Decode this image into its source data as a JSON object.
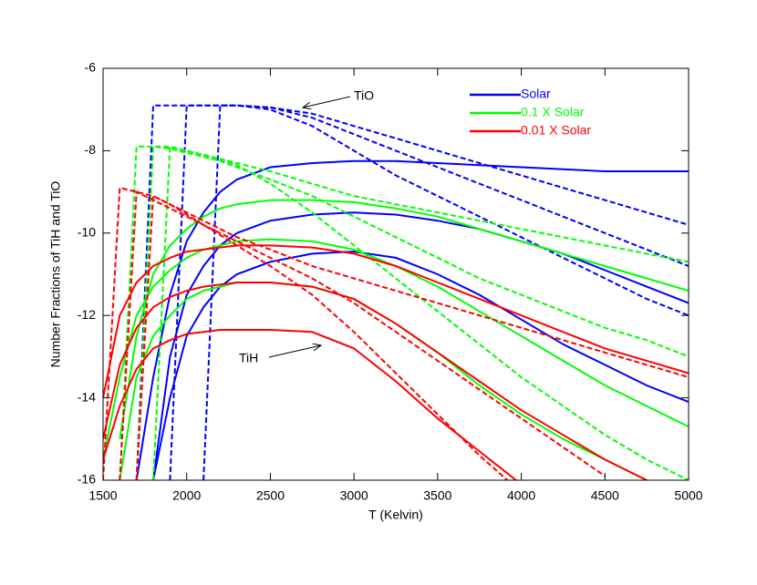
{
  "chart_data": {
    "type": "line",
    "x_label": "T (Kelvin)",
    "y_label": "Number Fractions of TiH and TiO",
    "annotations": [
      "TiO",
      "TiH"
    ],
    "x": [
      1500,
      1600,
      1700,
      1800,
      1900,
      2000,
      2100,
      2200,
      2300,
      2500,
      2750,
      3000,
      3250,
      3500,
      3750,
      4000,
      4250,
      4500,
      4750,
      5000
    ],
    "xlim": [
      1500,
      5000
    ],
    "xticks": [
      1500,
      2000,
      2500,
      3000,
      3500,
      4000,
      4500,
      5000
    ],
    "ylim": [
      -16,
      -6
    ],
    "yticks": [
      -16,
      -14,
      -12,
      -10,
      -8,
      -6
    ],
    "legend": "upper right",
    "series": [
      {
        "name": "Solar",
        "color": "#0000ff",
        "curves": [
          {
            "style": "dashed",
            "values": [
              null,
              null,
              -16,
              -6.9,
              -6.9,
              -6.9,
              -6.9,
              -6.9,
              -6.9,
              -6.95,
              -7.1,
              -7.4,
              -7.7,
              -8.0,
              -8.3,
              -8.6,
              -8.9,
              -9.2,
              -9.5,
              -9.8
            ]
          },
          {
            "style": "dashed",
            "values": [
              null,
              null,
              null,
              null,
              -16,
              -6.9,
              -6.9,
              -6.9,
              -6.9,
              -6.95,
              -7.2,
              -7.6,
              -8.0,
              -8.4,
              -8.8,
              -9.2,
              -9.6,
              -10.0,
              -10.4,
              -10.8
            ]
          },
          {
            "style": "dashed",
            "values": [
              null,
              null,
              null,
              null,
              null,
              null,
              -16,
              -6.9,
              -6.9,
              -7.0,
              -7.4,
              -8.0,
              -8.6,
              -9.1,
              -9.6,
              -10.1,
              -10.6,
              -11.1,
              -11.6,
              -12.0
            ]
          },
          {
            "style": "solid",
            "values": [
              null,
              null,
              -16,
              -13.5,
              -11.5,
              -10.2,
              -9.5,
              -9.0,
              -8.7,
              -8.4,
              -8.3,
              -8.25,
              -8.25,
              -8.3,
              -8.35,
              -8.4,
              -8.45,
              -8.5,
              -8.5,
              -8.5
            ]
          },
          {
            "style": "solid",
            "values": [
              null,
              null,
              null,
              -16,
              -13.0,
              -11.5,
              -10.8,
              -10.3,
              -10.0,
              -9.7,
              -9.55,
              -9.5,
              -9.55,
              -9.7,
              -9.9,
              -10.2,
              -10.5,
              -10.9,
              -11.3,
              -11.7
            ]
          },
          {
            "style": "solid",
            "values": [
              null,
              null,
              null,
              -16,
              -14,
              -12.5,
              -11.8,
              -11.3,
              -11.0,
              -10.7,
              -10.5,
              -10.45,
              -10.6,
              -11.0,
              -11.5,
              -12.1,
              -12.7,
              -13.2,
              -13.7,
              -14.1
            ]
          }
        ]
      },
      {
        "name": "0.1 X Solar",
        "color": "#00ff00",
        "curves": [
          {
            "style": "dashed",
            "values": [
              null,
              -16,
              -7.9,
              -7.9,
              -7.9,
              -8.0,
              -8.1,
              -8.2,
              -8.3,
              -8.5,
              -8.8,
              -9.1,
              -9.3,
              -9.5,
              -9.7,
              -9.9,
              -10.1,
              -10.3,
              -10.5,
              -10.7
            ]
          },
          {
            "style": "dashed",
            "values": [
              null,
              null,
              -16,
              -7.9,
              -7.95,
              -8.05,
              -8.15,
              -8.25,
              -8.4,
              -8.7,
              -9.1,
              -9.6,
              -10.1,
              -10.6,
              -11.1,
              -11.5,
              -11.9,
              -12.3,
              -12.6,
              -13.0
            ]
          },
          {
            "style": "dashed",
            "values": [
              null,
              null,
              null,
              -16,
              -7.9,
              -8.0,
              -8.1,
              -8.2,
              -8.35,
              -8.8,
              -9.5,
              -10.3,
              -11.1,
              -11.9,
              -12.7,
              -13.5,
              -14.2,
              -14.9,
              -15.5,
              -16
            ]
          },
          {
            "style": "solid",
            "values": [
              null,
              -15,
              -12.5,
              -11.0,
              -10.3,
              -9.9,
              -9.6,
              -9.4,
              -9.3,
              -9.2,
              -9.2,
              -9.25,
              -9.4,
              -9.6,
              -9.9,
              -10.2,
              -10.5,
              -10.8,
              -11.1,
              -11.4
            ]
          },
          {
            "style": "solid",
            "values": [
              -15.5,
              -13.5,
              -12.0,
              -11.3,
              -10.9,
              -10.6,
              -10.4,
              -10.3,
              -10.2,
              -10.15,
              -10.2,
              -10.4,
              -10.8,
              -11.3,
              -11.9,
              -12.5,
              -13.1,
              -13.7,
              -14.2,
              -14.7
            ]
          },
          {
            "style": "solid",
            "values": [
              null,
              -16,
              -13.5,
              -12.5,
              -12.0,
              -11.6,
              -11.4,
              -11.3,
              -11.2,
              -11.2,
              -11.3,
              -11.6,
              -12.2,
              -12.9,
              -13.7,
              -14.4,
              -15.0,
              -15.5,
              -16,
              null
            ]
          }
        ]
      },
      {
        "name": "0.01 X Solar",
        "color": "#ff0000",
        "curves": [
          {
            "style": "dashed",
            "values": [
              -16,
              -8.9,
              -9.0,
              -9.1,
              -9.3,
              -9.5,
              -9.7,
              -9.9,
              -10.1,
              -10.4,
              -10.8,
              -11.1,
              -11.4,
              -11.7,
              -12.0,
              -12.3,
              -12.6,
              -12.9,
              -13.2,
              -13.5
            ]
          },
          {
            "style": "dashed",
            "values": [
              null,
              -16,
              -9.0,
              -9.2,
              -9.4,
              -9.6,
              -9.8,
              -10.0,
              -10.2,
              -10.6,
              -11.1,
              -11.7,
              -12.4,
              -13.1,
              -13.8,
              -14.5,
              -15.2,
              -15.9,
              null,
              null
            ]
          },
          {
            "style": "dashed",
            "values": [
              null,
              null,
              -16,
              -9.1,
              -9.3,
              -9.55,
              -9.8,
              -10.05,
              -10.3,
              -10.8,
              -11.5,
              -12.4,
              -13.4,
              -14.4,
              -15.4,
              -16.3,
              null,
              null,
              null,
              null
            ]
          },
          {
            "style": "solid",
            "values": [
              -14,
              -12.0,
              -11.2,
              -10.8,
              -10.6,
              -10.45,
              -10.4,
              -10.35,
              -10.3,
              -10.3,
              -10.35,
              -10.5,
              -10.8,
              -11.2,
              -11.6,
              -12.0,
              -12.4,
              -12.8,
              -13.1,
              -13.4
            ]
          },
          {
            "style": "solid",
            "values": [
              -15,
              -13.2,
              -12.3,
              -11.8,
              -11.55,
              -11.4,
              -11.3,
              -11.25,
              -11.2,
              -11.2,
              -11.3,
              -11.6,
              -12.2,
              -12.9,
              -13.6,
              -14.3,
              -14.9,
              -15.5,
              -16,
              null
            ]
          },
          {
            "style": "solid",
            "values": [
              -15.5,
              -14.2,
              -13.3,
              -12.8,
              -12.6,
              -12.45,
              -12.4,
              -12.35,
              -12.35,
              -12.35,
              -12.4,
              -12.8,
              -13.6,
              -14.5,
              -15.3,
              -16.1,
              null,
              null,
              null,
              null
            ]
          }
        ]
      }
    ]
  }
}
